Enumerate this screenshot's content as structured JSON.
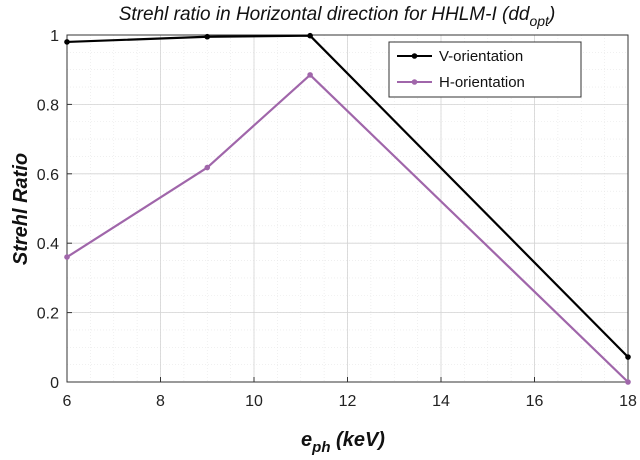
{
  "chart_data": {
    "type": "line",
    "title_main": "Strehl ratio in Horizontal direction for HHLM-I (dd",
    "title_sub": "opt",
    "title_end": ")",
    "xlabel_main": "e",
    "xlabel_sub": "ph",
    "xlabel_end": " (keV)",
    "ylabel": "Strehl Ratio",
    "xlim": [
      6,
      18
    ],
    "ylim": [
      0,
      1
    ],
    "xticks": [
      6,
      8,
      10,
      12,
      14,
      16,
      18
    ],
    "yticks": [
      0,
      0.2,
      0.4,
      0.6,
      0.8,
      1
    ],
    "ytick_labels": [
      "0",
      "0.2",
      "0.4",
      "0.6",
      "0.8",
      "1"
    ],
    "grid": true,
    "legend_position": "top-right",
    "series": [
      {
        "name": "V-orientation",
        "color": "#000000",
        "x": [
          6,
          9,
          11.2,
          18
        ],
        "y": [
          0.98,
          0.995,
          0.998,
          0.072
        ]
      },
      {
        "name": "H-orientation",
        "color": "#a066aa",
        "x": [
          6,
          9,
          11.2,
          18
        ],
        "y": [
          0.36,
          0.618,
          0.885,
          0.0
        ]
      }
    ]
  }
}
